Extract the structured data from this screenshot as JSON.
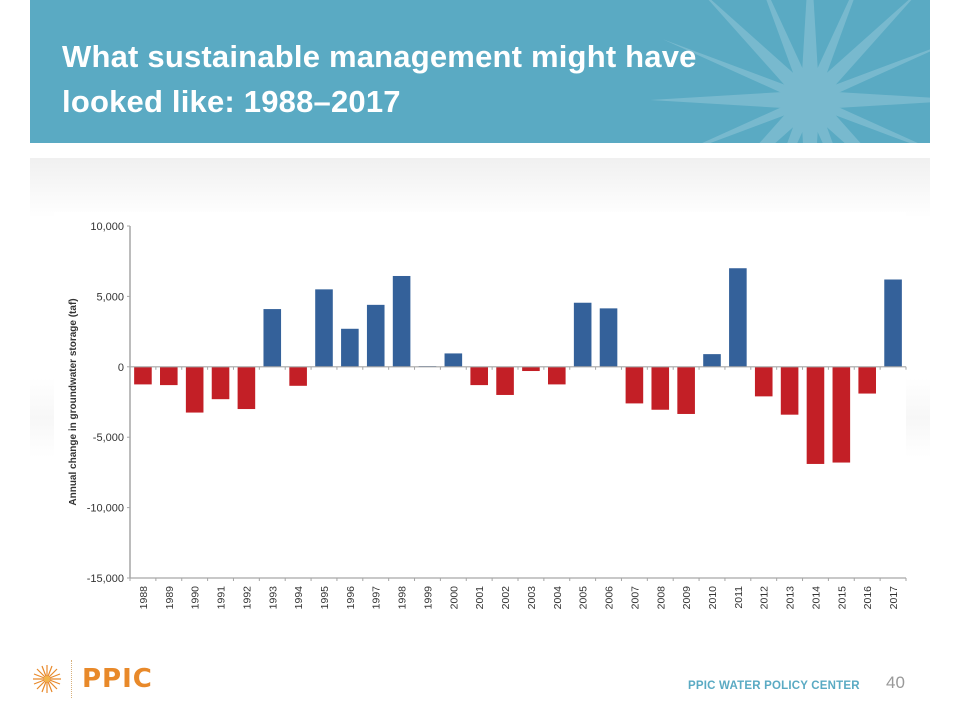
{
  "slide": {
    "title_line1": "What sustainable management might have",
    "title_line2": "looked like: 1988–2017",
    "logo_text": "PPIC",
    "center_name": "PPIC WATER POLICY CENTER",
    "page_number": "40"
  },
  "colors": {
    "header": "#5aaac3",
    "positive_bar": "#34619a",
    "negative_bar": "#c31f26",
    "axis": "#a6a6a6",
    "logo": "#e8892a"
  },
  "chart_data": {
    "type": "bar",
    "title": "",
    "xlabel": "",
    "ylabel": "Annual change in groundwater storage (taf)",
    "ylim": [
      -15000,
      10000
    ],
    "yticks": [
      10000,
      5000,
      0,
      -5000,
      -10000,
      -15000
    ],
    "ytick_labels": [
      "10,000",
      "5,000",
      "0",
      "-5,000",
      "-10,000",
      "-15,000"
    ],
    "grid": false,
    "legend": "none",
    "categories": [
      "1988",
      "1989",
      "1990",
      "1991",
      "1992",
      "1993",
      "1994",
      "1995",
      "1996",
      "1997",
      "1998",
      "1999",
      "2000",
      "2001",
      "2002",
      "2003",
      "2004",
      "2005",
      "2006",
      "2007",
      "2008",
      "2009",
      "2010",
      "2011",
      "2012",
      "2013",
      "2014",
      "2015",
      "2016",
      "2017"
    ],
    "values": [
      -1250,
      -1300,
      -3250,
      -2300,
      -3000,
      4100,
      -1350,
      5500,
      2700,
      4400,
      6450,
      50,
      950,
      -1300,
      -2000,
      -300,
      -1250,
      4550,
      4150,
      -2600,
      -3050,
      -3350,
      900,
      7000,
      -2100,
      -3400,
      -6900,
      -6800,
      -1900,
      6200
    ]
  }
}
